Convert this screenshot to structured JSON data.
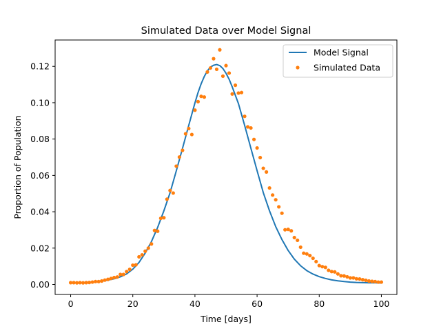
{
  "chart_data": {
    "type": "line",
    "title": "Simulated Data over Model Signal",
    "xlabel": "Time [days]",
    "ylabel": "Proportion of Population",
    "xlim": [
      -5,
      105
    ],
    "ylim": [
      -0.0055,
      0.1345
    ],
    "xticks": [
      0,
      20,
      40,
      60,
      80,
      100
    ],
    "yticks": [
      0.0,
      0.02,
      0.04,
      0.06,
      0.08,
      0.1,
      0.12
    ],
    "grid": false,
    "legend_position": "top-right",
    "series": [
      {
        "name": "Model Signal",
        "kind": "line",
        "color": "#1f77b4",
        "x": [
          0,
          2,
          4,
          6,
          8,
          10,
          12,
          14,
          16,
          18,
          20,
          22,
          24,
          26,
          28,
          30,
          32,
          34,
          36,
          38,
          40,
          41,
          42,
          43,
          44,
          45,
          46,
          47,
          48,
          49,
          50,
          51,
          52,
          54,
          56,
          58,
          60,
          62,
          64,
          66,
          68,
          70,
          72,
          74,
          76,
          78,
          80,
          82,
          84,
          86,
          88,
          90,
          92,
          94,
          96,
          98,
          100
        ],
        "y": [
          0.0008,
          0.0009,
          0.001,
          0.0012,
          0.0014,
          0.0018,
          0.0024,
          0.0031,
          0.0042,
          0.0058,
          0.0084,
          0.0121,
          0.0173,
          0.0236,
          0.0314,
          0.0405,
          0.0505,
          0.0625,
          0.0749,
          0.0875,
          0.0999,
          0.1056,
          0.1104,
          0.1144,
          0.1175,
          0.1196,
          0.1206,
          0.121,
          0.1204,
          0.1188,
          0.1162,
          0.1129,
          0.1087,
          0.0995,
          0.0875,
          0.075,
          0.0626,
          0.0505,
          0.0405,
          0.0318,
          0.0247,
          0.0187,
          0.0139,
          0.0103,
          0.0076,
          0.0057,
          0.0043,
          0.0033,
          0.0025,
          0.002,
          0.0016,
          0.0013,
          0.0011,
          0.001,
          0.0009,
          0.0009,
          0.0008
        ]
      },
      {
        "name": "Simulated Data",
        "kind": "scatter",
        "color": "#ff7f0e",
        "x": [
          0,
          1,
          2,
          3,
          4,
          5,
          6,
          7,
          8,
          9,
          10,
          11,
          12,
          13,
          14,
          15,
          16,
          17,
          18,
          19,
          20,
          21,
          22,
          23,
          24,
          25,
          26,
          27,
          28,
          29,
          30,
          31,
          32,
          33,
          34,
          35,
          36,
          37,
          38,
          39,
          40,
          41,
          42,
          43,
          44,
          45,
          46,
          47,
          48,
          49,
          50,
          51,
          52,
          53,
          54,
          55,
          56,
          57,
          58,
          59,
          60,
          61,
          62,
          63,
          64,
          65,
          66,
          67,
          68,
          69,
          70,
          71,
          72,
          73,
          74,
          75,
          76,
          77,
          78,
          79,
          80,
          81,
          82,
          83,
          84,
          85,
          86,
          87,
          88,
          89,
          90,
          91,
          92,
          93,
          94,
          95,
          96,
          97,
          98,
          99,
          100
        ],
        "y": [
          0.001,
          0.001,
          0.0009,
          0.001,
          0.0009,
          0.001,
          0.0011,
          0.0013,
          0.0016,
          0.0016,
          0.0019,
          0.0024,
          0.0028,
          0.0033,
          0.0038,
          0.0041,
          0.0055,
          0.0055,
          0.0071,
          0.0083,
          0.0106,
          0.0108,
          0.0152,
          0.0163,
          0.0183,
          0.02,
          0.0223,
          0.0297,
          0.0293,
          0.0364,
          0.0367,
          0.0469,
          0.0517,
          0.0503,
          0.0651,
          0.0701,
          0.0738,
          0.0829,
          0.0858,
          0.0825,
          0.0959,
          0.1006,
          0.1035,
          0.1031,
          0.1169,
          0.1191,
          0.1242,
          0.1184,
          0.1291,
          0.1146,
          0.1204,
          0.1163,
          0.1048,
          0.1096,
          0.1053,
          0.1056,
          0.0925,
          0.0867,
          0.0861,
          0.0798,
          0.0751,
          0.0698,
          0.0639,
          0.0619,
          0.0531,
          0.0492,
          0.0466,
          0.0427,
          0.0392,
          0.0301,
          0.0303,
          0.0295,
          0.0258,
          0.0243,
          0.0205,
          0.0172,
          0.0168,
          0.0159,
          0.0144,
          0.0126,
          0.0104,
          0.0098,
          0.0094,
          0.0078,
          0.0071,
          0.0069,
          0.0058,
          0.0048,
          0.0047,
          0.0042,
          0.0036,
          0.0036,
          0.0031,
          0.003,
          0.0026,
          0.0023,
          0.0019,
          0.0017,
          0.0016,
          0.0013,
          0.0013
        ]
      }
    ]
  }
}
